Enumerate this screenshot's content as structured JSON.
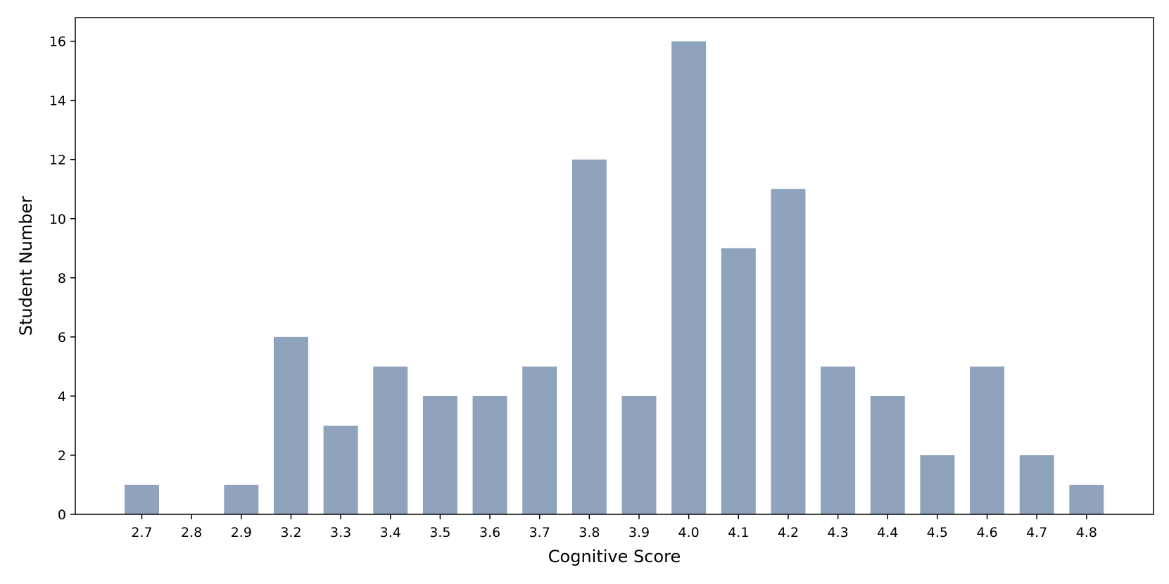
{
  "chart_data": {
    "type": "bar",
    "xlabel": "Cognitive Score",
    "ylabel": "Student Number",
    "categories": [
      "2.7",
      "2.8",
      "2.9",
      "3.2",
      "3.3",
      "3.4",
      "3.5",
      "3.6",
      "3.7",
      "3.8",
      "3.9",
      "4.0",
      "4.1",
      "4.2",
      "4.3",
      "4.4",
      "4.5",
      "4.6",
      "4.7",
      "4.8"
    ],
    "values": [
      1,
      0,
      1,
      6,
      3,
      5,
      4,
      4,
      5,
      12,
      4,
      16,
      9,
      11,
      5,
      4,
      2,
      5,
      2,
      1
    ],
    "ylim": [
      0,
      16.8
    ],
    "yticks": [
      0,
      2,
      4,
      6,
      8,
      10,
      12,
      14,
      16
    ],
    "bar_color": "#8fa3bc",
    "grid": false,
    "legend": "none"
  }
}
